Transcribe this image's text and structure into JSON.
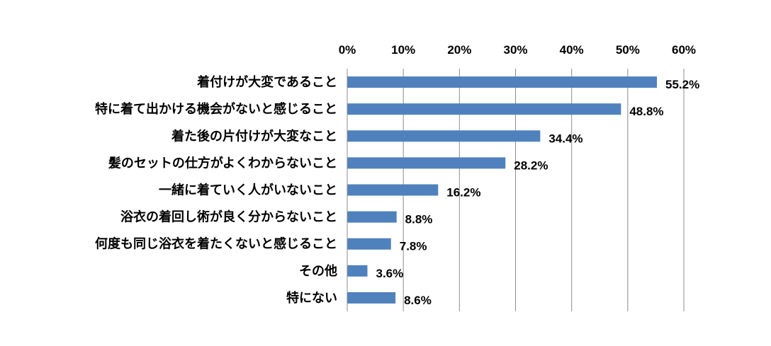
{
  "chart_data": {
    "type": "bar",
    "orientation": "horizontal",
    "title": "",
    "xlabel": "",
    "ylabel": "",
    "xlim": [
      0,
      60
    ],
    "x_ticks": [
      0,
      10,
      20,
      30,
      40,
      50,
      60
    ],
    "x_tick_labels": [
      "0%",
      "10%",
      "20%",
      "30%",
      "40%",
      "50%",
      "60%"
    ],
    "x_axis_position": "top",
    "grid": true,
    "legend": "none",
    "bar_color": "#4f81bd",
    "categories": [
      "着付けが大変であること",
      "特に着て出かける機会がないと感じること",
      "着た後の片付けが大変なこと",
      "髪のセットの仕方がよくわからないこと",
      "一緒に着ていく人がいないこと",
      "浴衣の着回し術が良く分からないこと",
      "何度も同じ浴衣を着たくないと感じること",
      "その他",
      "特にない"
    ],
    "values": [
      55.2,
      48.8,
      34.4,
      28.2,
      16.2,
      8.8,
      7.8,
      3.6,
      8.6
    ],
    "value_labels": [
      "55.2%",
      "48.8%",
      "34.4%",
      "28.2%",
      "16.2%",
      "8.8%",
      "7.8%",
      "3.6%",
      "8.6%"
    ]
  }
}
